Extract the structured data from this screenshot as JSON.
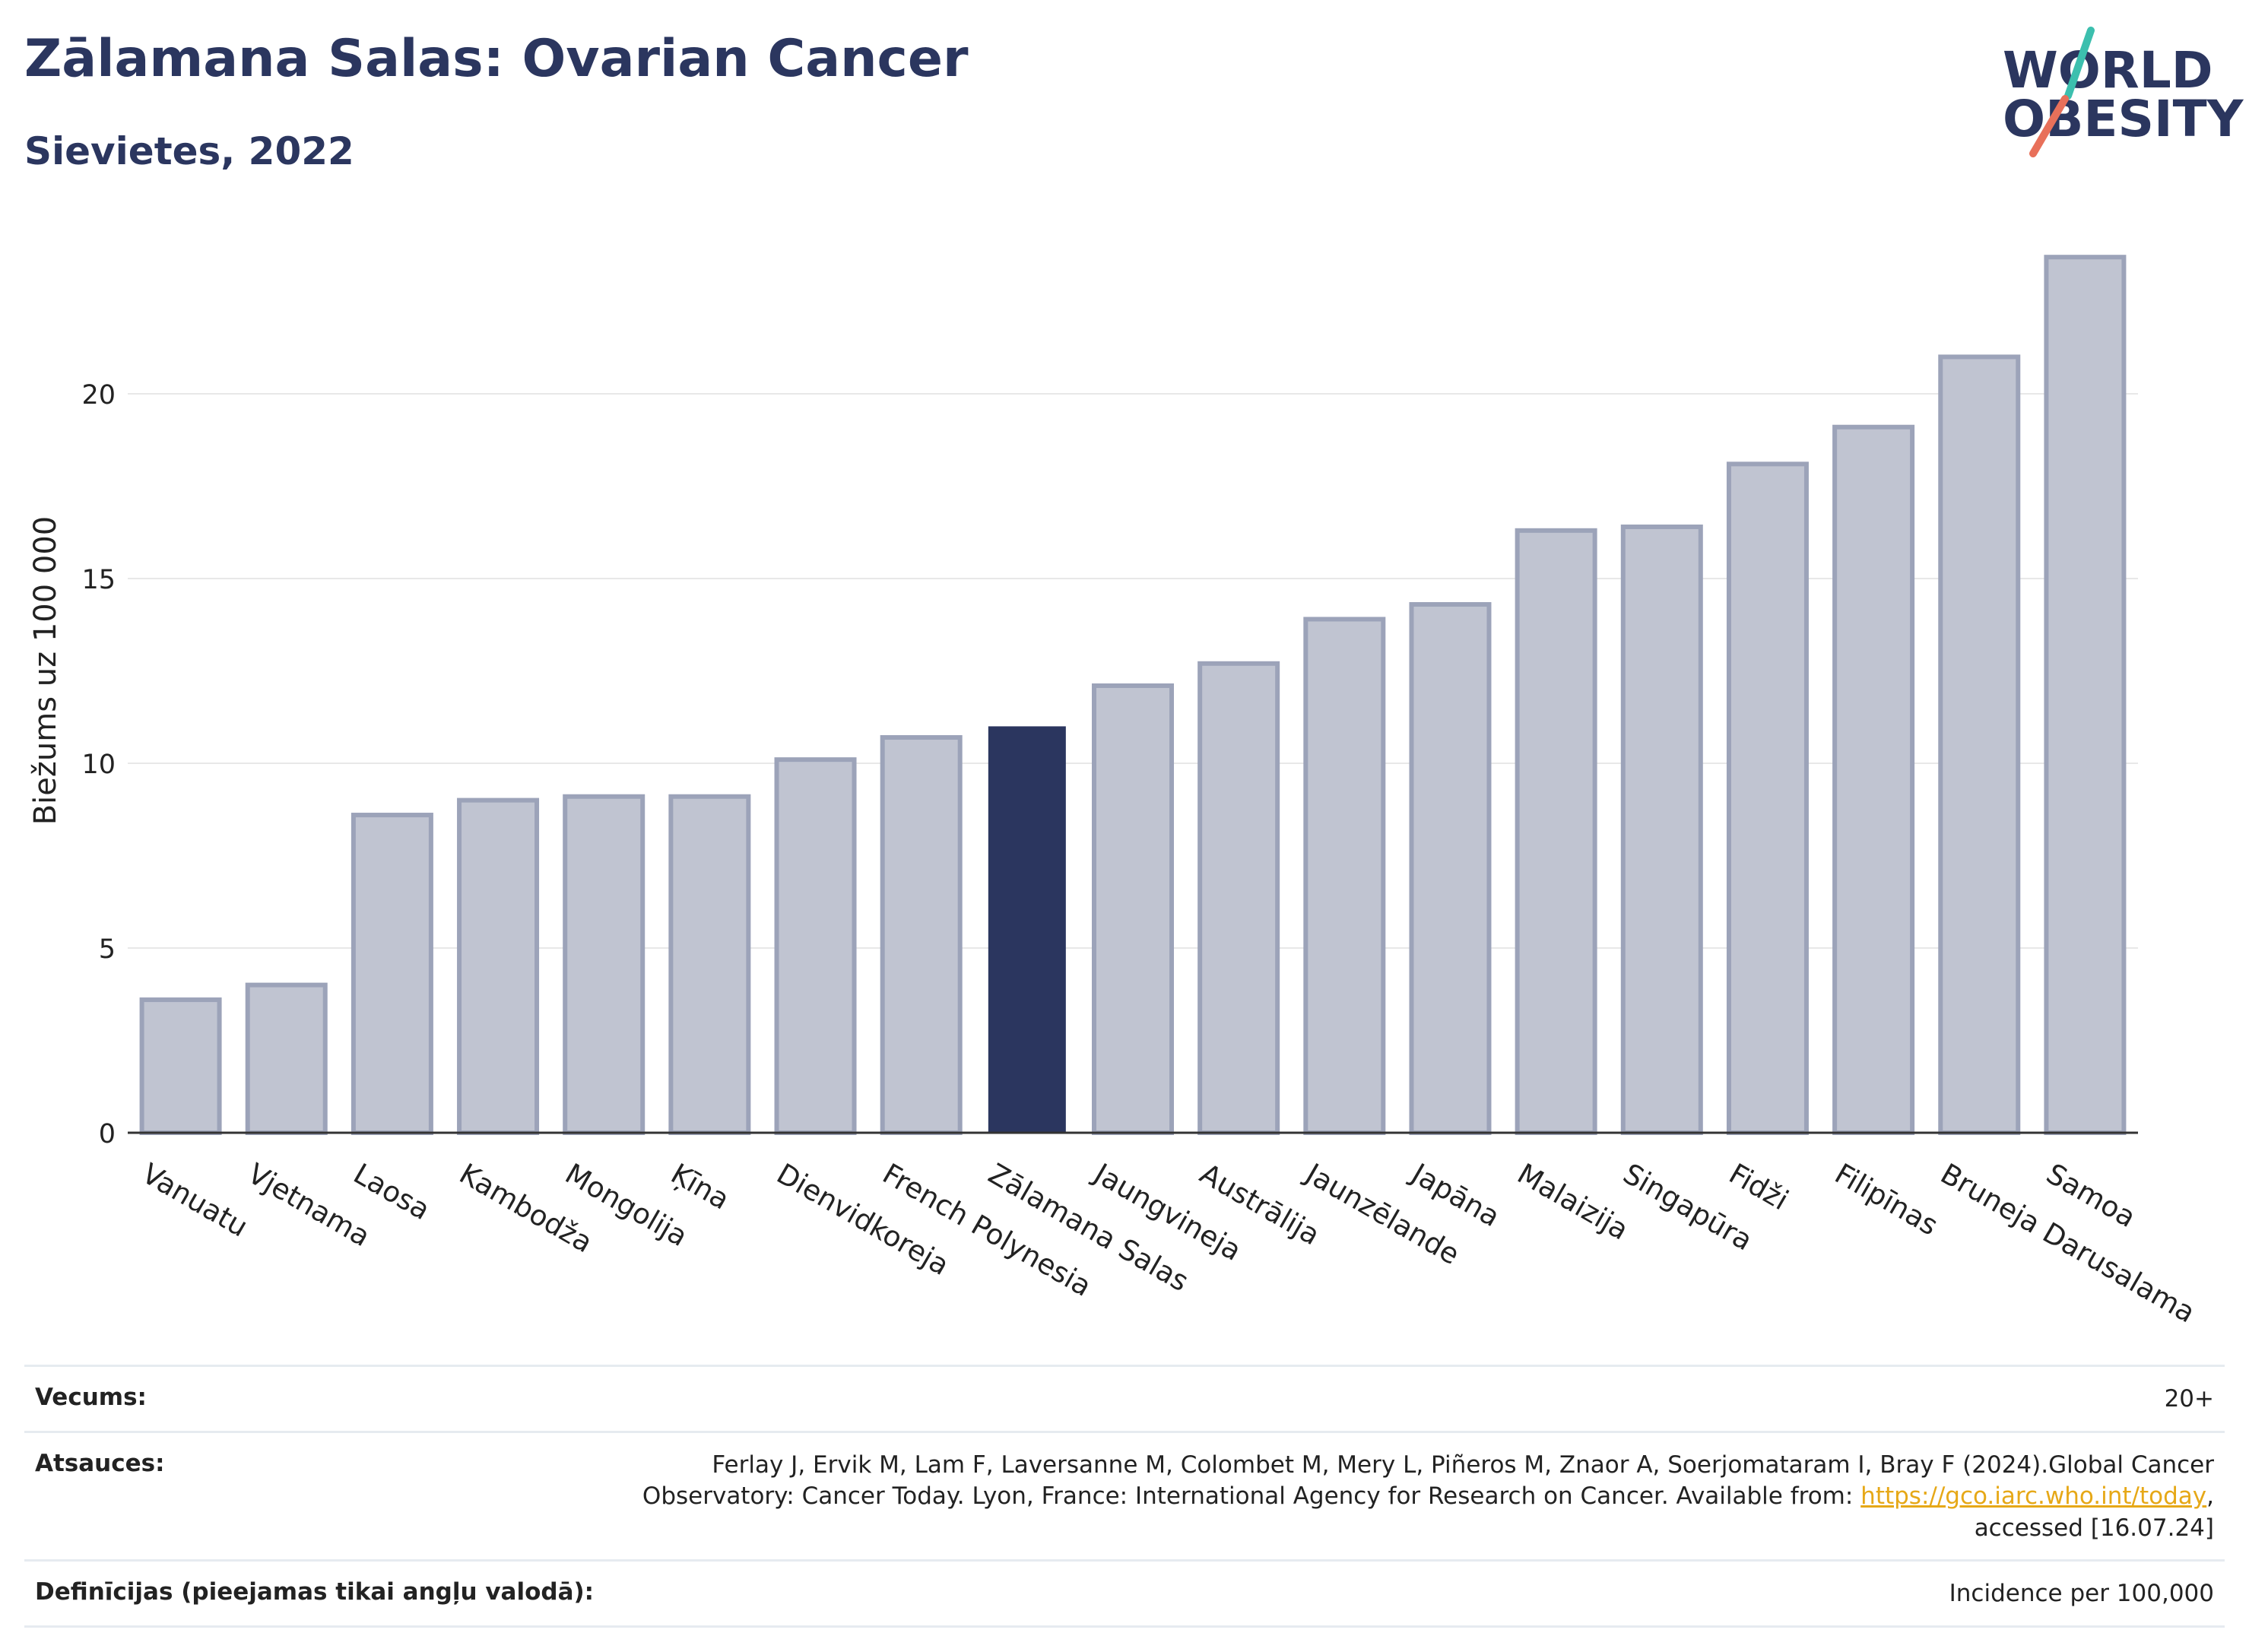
{
  "header": {
    "title": "Zālamana Salas: Ovarian Cancer",
    "subtitle": "Sievietes, 2022"
  },
  "logo": {
    "line1": "WORLD",
    "line2": "OBESITY",
    "slash_colors": [
      "#3cbfae",
      "#e8705a"
    ]
  },
  "colors": {
    "highlight": "#2b365f",
    "bar_fill": "#c0c4d1",
    "bar_stroke": "#9ca3b9",
    "grid": "#e8e8e8",
    "axis": "#333333"
  },
  "chart_data": {
    "type": "bar",
    "title": "Zālamana Salas: Ovarian Cancer",
    "subtitle": "Sievietes, 2022",
    "xlabel": "",
    "ylabel": "Biežums uz 100 000",
    "ylim": [
      0,
      24.5
    ],
    "yticks": [
      0,
      5,
      10,
      15,
      20
    ],
    "grid": true,
    "highlight": "Zālamana Salas",
    "categories": [
      "Vanuatu",
      "Vjetnama",
      "Laosa",
      "Kambodža",
      "Mongolija",
      "Ķīna",
      "Dienvidkoreja",
      "French Polynesia",
      "Zālamana Salas",
      "Jaungvineja",
      "Austrālija",
      "Jaunzēlande",
      "Japāna",
      "Malaizija",
      "Singapūra",
      "Fidži",
      "Filipīnas",
      "Bruneja Darusalama",
      "Samoa"
    ],
    "values": [
      3.6,
      4.0,
      8.6,
      9.0,
      9.1,
      9.1,
      10.1,
      10.7,
      11.0,
      12.1,
      12.7,
      13.9,
      14.3,
      16.3,
      16.4,
      18.1,
      19.1,
      21.0,
      23.7
    ]
  },
  "meta": {
    "age_label": "Vecums:",
    "age_value": "20+",
    "refs_label": "Atsauces:",
    "refs_line1": "Ferlay J, Ervik M, Lam F, Laversanne M, Colombet M, Mery L, Piñeros M, Znaor A, Soerjomataram I, Bray F (2024).Global Cancer",
    "refs_line2_pre": "Observatory: Cancer Today. Lyon, France: International Agency for Research on Cancer. Available from: ",
    "refs_link": "https://gco.iarc.who.int/today",
    "refs_line2_post": ",",
    "refs_line3": "accessed [16.07.24]",
    "defs_label": "Definīcijas (pieejamas tikai angļu valodā):",
    "defs_value": "Incidence per 100,000"
  }
}
